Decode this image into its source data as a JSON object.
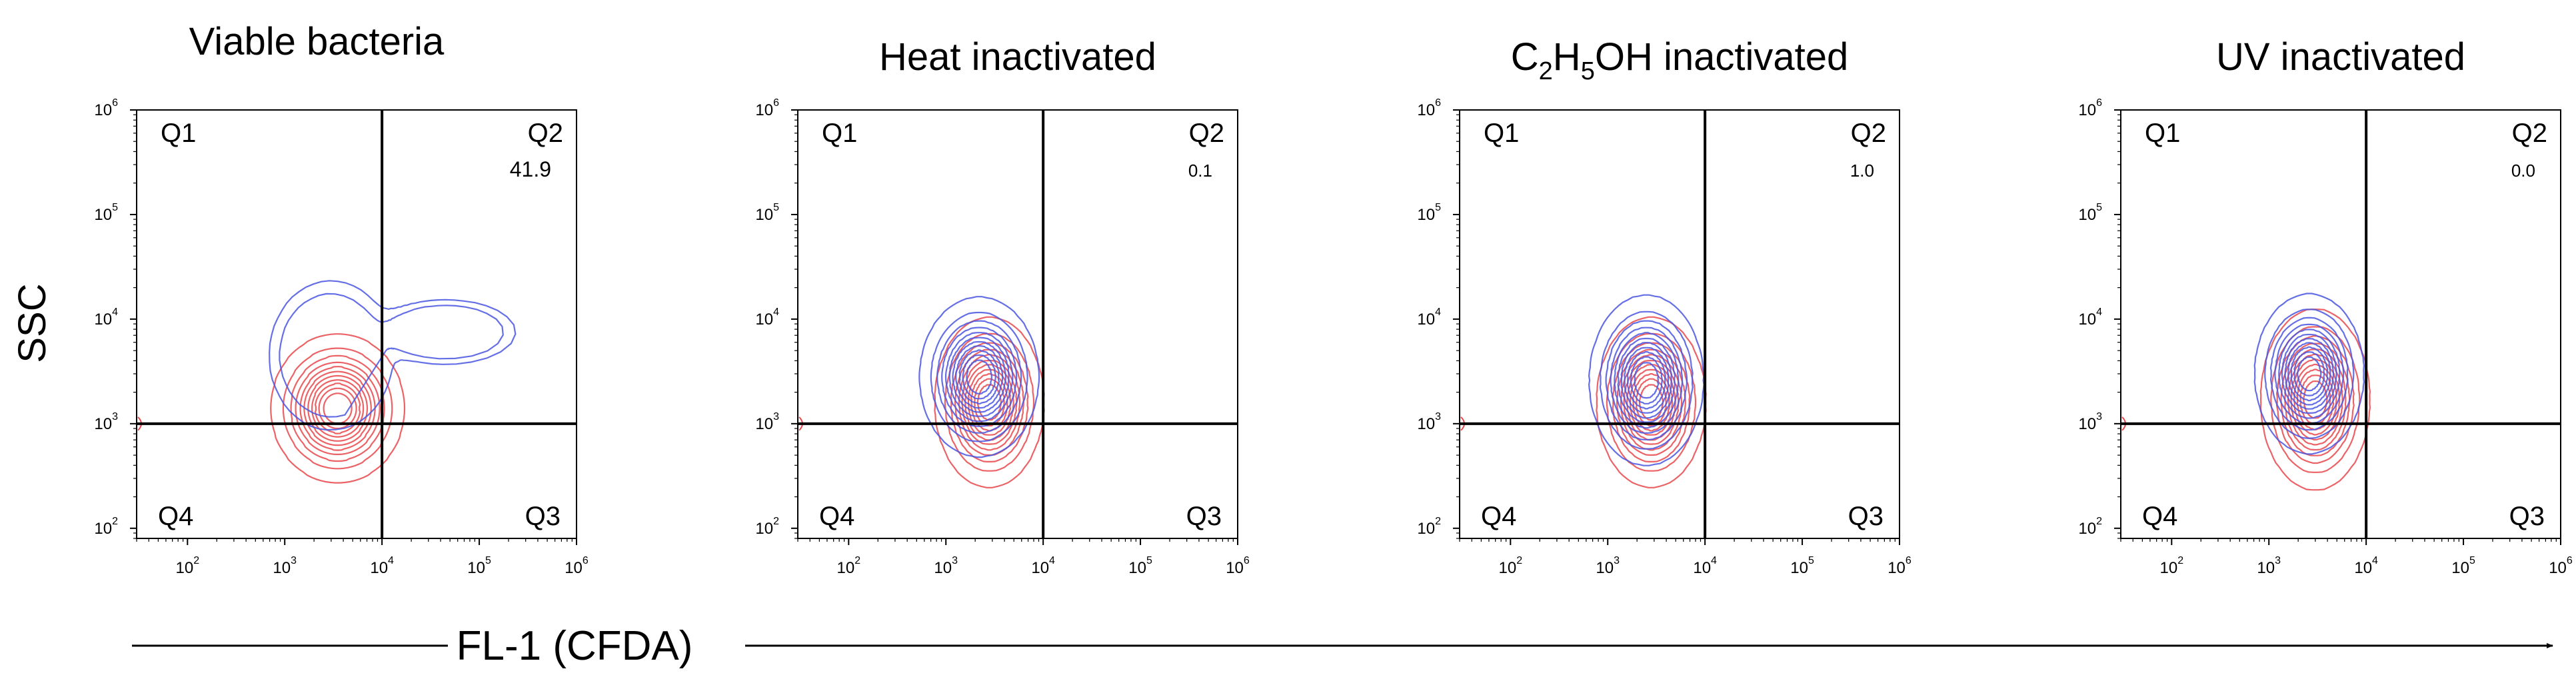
{
  "figure": {
    "y_axis_label": "SSC",
    "x_axis_label": "FL-1 (CFDA)"
  },
  "colors": {
    "series_pi_negative": "#e8484b",
    "series_cfda": "#4a56e0",
    "axis": "#000000"
  },
  "chart_data": [
    {
      "type": "contour",
      "title": "Viable bacteria",
      "xlabel": "FL-1 (CFDA)",
      "ylabel": "SSC",
      "x_scale": "log",
      "y_scale": "log",
      "xlim": [
        30,
        1000000
      ],
      "ylim": [
        80,
        1000000
      ],
      "x_ticks": [
        100,
        1000,
        10000,
        100000,
        1000000
      ],
      "y_ticks": [
        100,
        1000,
        10000,
        100000,
        1000000
      ],
      "x_tick_labels": [
        "10^2",
        "10^3",
        "10^4",
        "10^5",
        "10^6"
      ],
      "y_tick_labels": [
        "10^2",
        "10^3",
        "10^4",
        "10^5",
        "10^6"
      ],
      "gate": {
        "x": 10000,
        "y": 1000
      },
      "quadrants": {
        "Q1": "Q1",
        "Q2": "Q2",
        "Q3": "Q3",
        "Q4": "Q4"
      },
      "q2_percent": "41.9",
      "series": [
        {
          "name": "red",
          "peaks": [
            {
              "x": 3500,
              "y": 1400,
              "sx": 0.27,
              "sy": 0.28,
              "w": 1
            }
          ],
          "low_x": 500,
          "high_x": 6000,
          "top_y": 80000,
          "levels": 11
        },
        {
          "name": "blue",
          "peaks": [
            {
              "x": 3000,
              "y": 4500,
              "sx": 0.25,
              "sy": 0.28,
              "w": 1
            },
            {
              "x": 45000,
              "y": 7500,
              "sx": 0.28,
              "sy": 0.12,
              "w": 1.05
            }
          ],
          "low_x": 1500,
          "high_x": 200000,
          "top_y": 30000,
          "levels": 13
        }
      ]
    },
    {
      "type": "contour",
      "title": "Heat inactivated",
      "xlabel": "FL-1 (CFDA)",
      "ylabel": "SSC",
      "x_scale": "log",
      "y_scale": "log",
      "xlim": [
        30,
        1000000
      ],
      "ylim": [
        80,
        1000000
      ],
      "x_ticks": [
        100,
        1000,
        10000,
        100000,
        1000000
      ],
      "y_ticks": [
        100,
        1000,
        10000,
        100000,
        1000000
      ],
      "x_tick_labels": [
        "10^2",
        "10^3",
        "10^4",
        "10^5",
        "10^6"
      ],
      "y_tick_labels": [
        "10^2",
        "10^3",
        "10^4",
        "10^5",
        "10^6"
      ],
      "gate": {
        "x": 10000,
        "y": 1000
      },
      "quadrants": {
        "Q1": "Q1",
        "Q2": "Q2",
        "Q3": "Q3",
        "Q4": "Q4"
      },
      "q2_percent": "0.1",
      "series": [
        {
          "name": "red",
          "peaks": [
            {
              "x": 2800,
              "y": 1600,
              "sx": 0.22,
              "sy": 0.32,
              "w": 1
            }
          ],
          "low_x": 600,
          "high_x": 6000,
          "top_y": 80000,
          "levels": 11
        },
        {
          "name": "blue",
          "peaks": [
            {
              "x": 2200,
              "y": 2800,
              "sx": 0.24,
              "sy": 0.3,
              "w": 1
            }
          ],
          "low_x": 500,
          "high_x": 5000,
          "top_y": 20000,
          "levels": 11
        }
      ]
    },
    {
      "type": "contour",
      "title": "C2H5OH inactivated",
      "title_parts": [
        "C",
        "2",
        "H",
        "5",
        "OH inactivated"
      ],
      "xlabel": "FL-1 (CFDA)",
      "ylabel": "SSC",
      "x_scale": "log",
      "y_scale": "log",
      "xlim": [
        30,
        1000000
      ],
      "ylim": [
        80,
        1000000
      ],
      "x_ticks": [
        100,
        1000,
        10000,
        100000,
        1000000
      ],
      "y_ticks": [
        100,
        1000,
        10000,
        100000,
        1000000
      ],
      "x_tick_labels": [
        "10^2",
        "10^3",
        "10^4",
        "10^5",
        "10^6"
      ],
      "y_tick_labels": [
        "10^2",
        "10^3",
        "10^4",
        "10^5",
        "10^6"
      ],
      "gate": {
        "x": 10000,
        "y": 1000
      },
      "quadrants": {
        "Q1": "Q1",
        "Q2": "Q2",
        "Q3": "Q3",
        "Q4": "Q4"
      },
      "q2_percent": "1.0",
      "series": [
        {
          "name": "red",
          "peaks": [
            {
              "x": 2800,
              "y": 1600,
              "sx": 0.22,
              "sy": 0.32,
              "w": 1
            }
          ],
          "low_x": 600,
          "high_x": 6000,
          "top_y": 80000,
          "levels": 11
        },
        {
          "name": "blue",
          "peaks": [
            {
              "x": 2500,
              "y": 2600,
              "sx": 0.23,
              "sy": 0.32,
              "w": 1
            }
          ],
          "low_x": 500,
          "high_x": 5000,
          "top_y": 30000,
          "levels": 11
        }
      ]
    },
    {
      "type": "contour",
      "title": "UV inactivated",
      "xlabel": "FL-1 (CFDA)",
      "ylabel": "SSC",
      "x_scale": "log",
      "y_scale": "log",
      "xlim": [
        30,
        1000000
      ],
      "ylim": [
        80,
        1000000
      ],
      "x_ticks": [
        100,
        1000,
        10000,
        100000,
        1000000
      ],
      "y_ticks": [
        100,
        1000,
        10000,
        100000,
        1000000
      ],
      "x_tick_labels": [
        "10^2",
        "10^3",
        "10^4",
        "10^5",
        "10^6"
      ],
      "y_tick_labels": [
        "10^2",
        "10^3",
        "10^4",
        "10^5",
        "10^6"
      ],
      "gate": {
        "x": 10000,
        "y": 1000
      },
      "quadrants": {
        "Q1": "Q1",
        "Q2": "Q2",
        "Q3": "Q3",
        "Q4": "Q4"
      },
      "q2_percent": "0.0",
      "series": [
        {
          "name": "red",
          "peaks": [
            {
              "x": 3000,
              "y": 1700,
              "sx": 0.22,
              "sy": 0.34,
              "w": 1
            }
          ],
          "low_x": 600,
          "high_x": 6000,
          "top_y": 80000,
          "levels": 11
        },
        {
          "name": "blue",
          "peaks": [
            {
              "x": 2600,
              "y": 3000,
              "sx": 0.22,
              "sy": 0.3,
              "w": 1
            }
          ],
          "low_x": 500,
          "high_x": 5000,
          "top_y": 25000,
          "levels": 11
        }
      ]
    }
  ]
}
